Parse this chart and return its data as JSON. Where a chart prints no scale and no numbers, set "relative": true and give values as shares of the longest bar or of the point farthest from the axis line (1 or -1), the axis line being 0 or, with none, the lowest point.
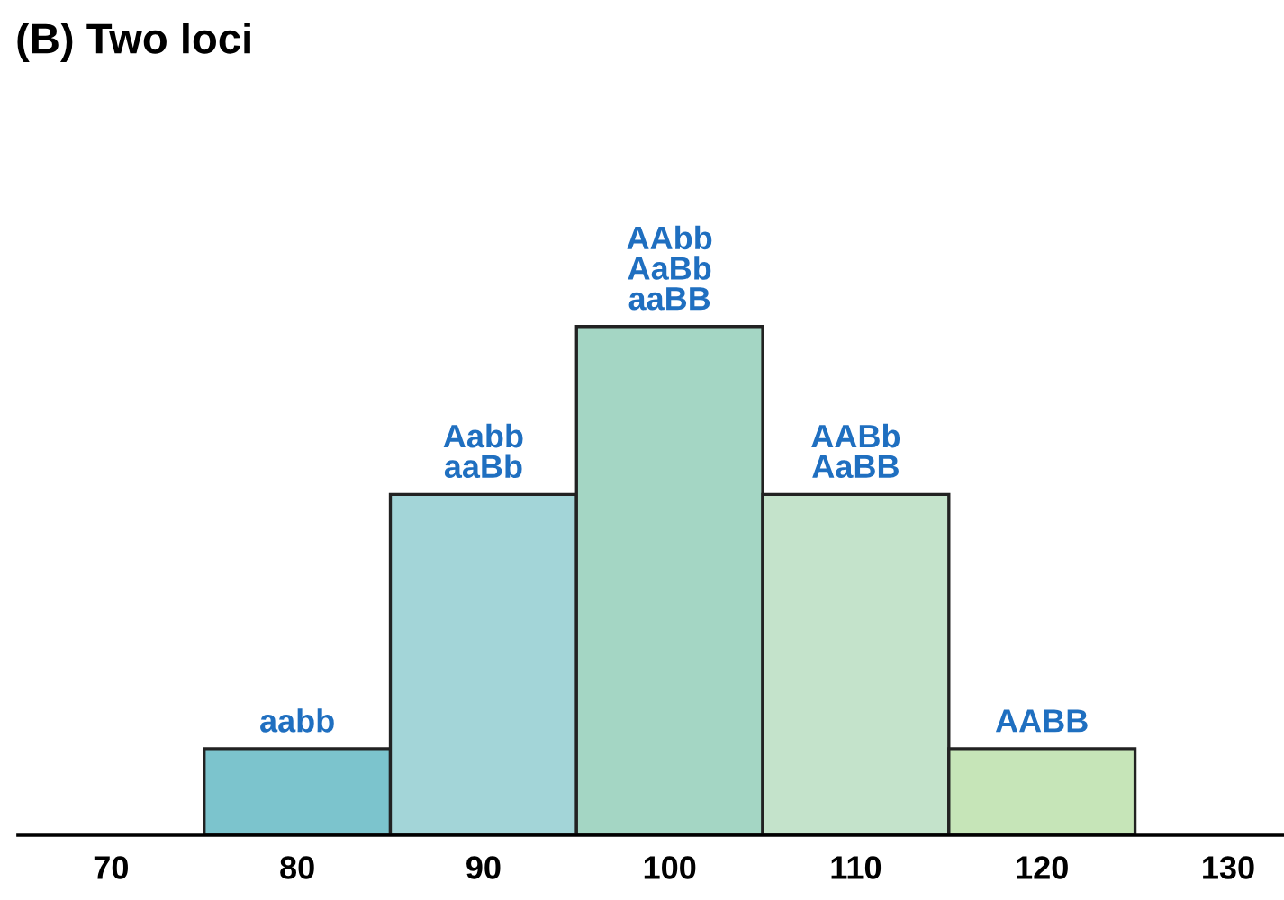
{
  "chart_data": {
    "type": "bar",
    "title": "(B) Two loci",
    "relative": true,
    "x": [
      80,
      90,
      100,
      110,
      120
    ],
    "values": [
      0.17,
      0.67,
      1,
      0.67,
      0.17
    ],
    "colors": [
      "#7cc4cd",
      "#a3d5d8",
      "#a4d6c4",
      "#c4e3cb",
      "#c6e5b8"
    ],
    "xlim": [
      65,
      133
    ],
    "xticks": [
      70,
      80,
      90,
      100,
      110,
      120,
      130
    ],
    "annotations": [
      {
        "text": "aabb",
        "x": 80,
        "y": 0.17
      },
      {
        "text": "Aabb\naaBb",
        "x": 90,
        "y": 0.67
      },
      {
        "text": "AAbb\nAaBb\naaBB",
        "x": 100,
        "y": 1
      },
      {
        "text": "AABb\nAaBB",
        "x": 110,
        "y": 0.67
      },
      {
        "text": "AABB",
        "x": 120,
        "y": 0.17
      }
    ]
  }
}
